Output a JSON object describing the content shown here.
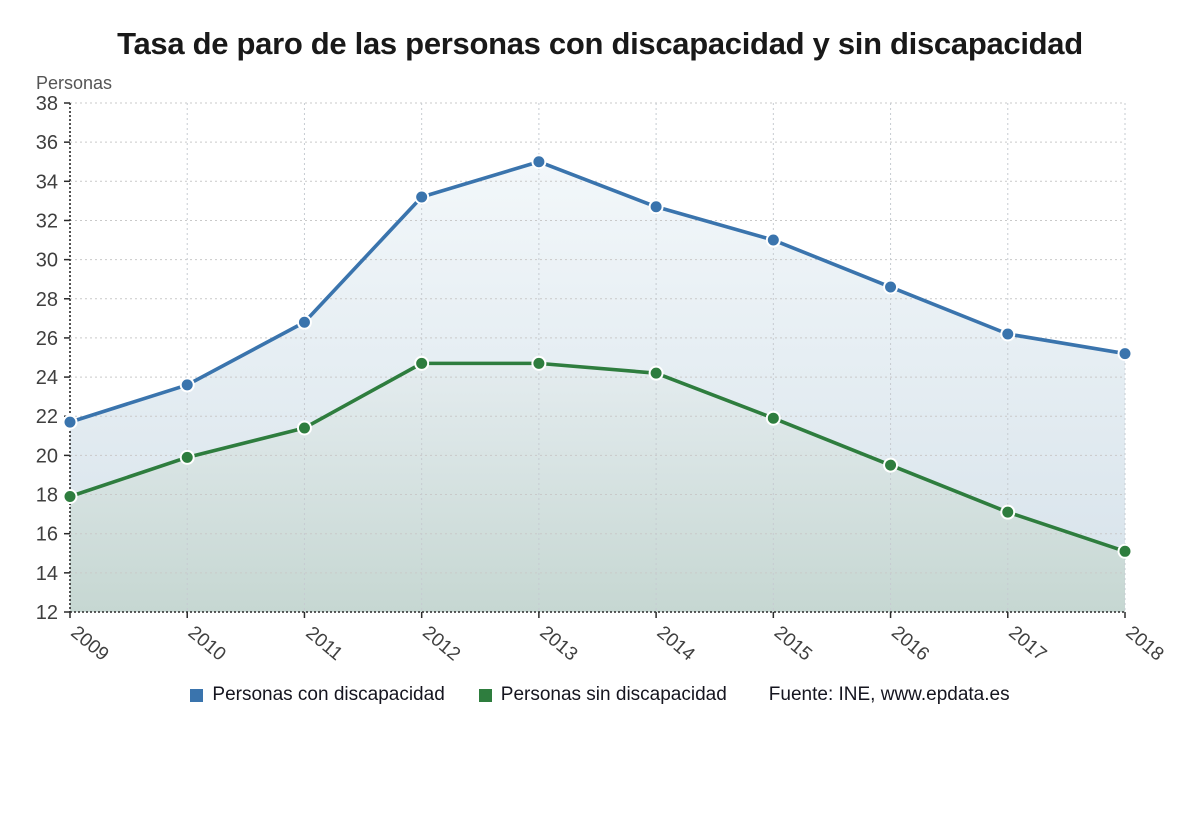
{
  "source": "Fuente: INE, www.epdata.es",
  "chart_data": {
    "type": "line",
    "title": "Tasa de paro de las personas con discapacidad y sin discapacidad",
    "ylabel": "Personas",
    "xlabel": "",
    "categories": [
      "2009",
      "2010",
      "2011",
      "2012",
      "2013",
      "2014",
      "2015",
      "2016",
      "2017",
      "2018"
    ],
    "series": [
      {
        "name": "Personas con discapacidad",
        "color": "#3a74ad",
        "area_gradient": [
          "#f6fafc",
          "#d6e2ea"
        ],
        "values": [
          21.7,
          23.6,
          26.8,
          33.2,
          35.0,
          32.7,
          31.0,
          28.6,
          26.2,
          25.2
        ]
      },
      {
        "name": "Personas sin discapacidad",
        "color": "#2e7d3e",
        "area_gradient": [
          "#e4ecef",
          "#c6d7d2"
        ],
        "values": [
          17.9,
          19.9,
          21.4,
          24.7,
          24.7,
          24.2,
          21.9,
          19.5,
          17.1,
          15.1
        ]
      }
    ],
    "ylim": [
      12,
      38
    ],
    "ytick_step": 2,
    "grid": true,
    "grid_color": "#c9c9c9",
    "axis_color": "#2a2a2a",
    "tick_label_color": "#3f3f3f",
    "legend_position": "bottom"
  }
}
